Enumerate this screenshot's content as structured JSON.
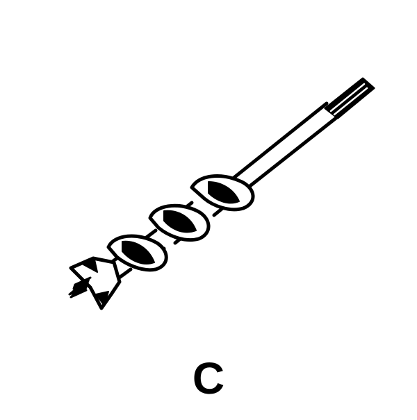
{
  "figure": {
    "caption": "C",
    "illustration_icon": "auger-drill-bit-icon",
    "ink_color": "#000000",
    "background_color": "#ffffff"
  }
}
